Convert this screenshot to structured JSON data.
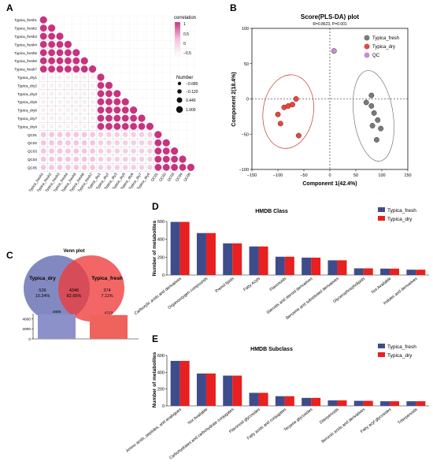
{
  "panels": {
    "A": {
      "label": "A"
    },
    "B": {
      "label": "B"
    },
    "C": {
      "label": "C"
    },
    "D": {
      "label": "D"
    },
    "E": {
      "label": "E"
    }
  },
  "colors": {
    "fresh": "#3f4c8c",
    "dry": "#e8201f",
    "qc": "#c68fd1",
    "grey": "#7a7a7a",
    "corr_high": "#c7337f",
    "corr_mid": "#f3c0dd"
  },
  "chart_data": [
    {
      "panel": "A",
      "type": "heatmap",
      "row_labels": [
        "Typica_fresh1",
        "Typica_fresh2",
        "Typica_fresh3",
        "Typica_fresh4",
        "Typica_fresh5",
        "Typica_fresh6",
        "Typica_fresh7",
        "Typica_dry1",
        "Typica_dry2",
        "Typica_dry3",
        "Typica_dry5",
        "Typica_dry6",
        "Typica_dry7",
        "Typica_dry4",
        "QC01",
        "QC02",
        "QC03",
        "QC04",
        "QC05"
      ],
      "col_labels": [
        "Typica_fresh1",
        "Typica_fresh2",
        "Typica_fresh3",
        "Typica_fresh4",
        "Typica_fresh5",
        "Typica_fresh6",
        "Typica_fresh7",
        "Typica_dry1",
        "Typica_dry2",
        "Typica_dry3",
        "Typica_dry5",
        "Typica_dry6",
        "Typica_dry7",
        "Typica_dry4",
        "QC01",
        "QC02",
        "QC03",
        "QC04",
        "QC05"
      ],
      "group_sizes": [
        7,
        7,
        5
      ],
      "block_correlation": {
        "same_group": 0.95,
        "fresh_vs_dry": 0.15,
        "qc_vs_fresh": 0.45,
        "qc_vs_dry": 0.4
      },
      "legend_correlation": {
        "title": "correlation",
        "ticks": [
          "1",
          "0.5",
          "0",
          "−0.5"
        ]
      },
      "legend_number": {
        "title": "Number",
        "values": [
          "−0.680",
          "−0.120",
          "0.440",
          "1.000"
        ]
      }
    },
    {
      "panel": "B",
      "type": "scatter",
      "title": "Score(PLS-DA) plot",
      "subtitle": "R=0.8623, P=0.001",
      "xlabel": "Component 1(42.4%)",
      "ylabel": "Component 2(18.4%)",
      "xlim": [
        -150,
        150
      ],
      "ylim": [
        -100,
        100
      ],
      "xticks": [
        "−150",
        "−100",
        "−50",
        "0",
        "50",
        "100",
        "150"
      ],
      "yticks": [
        "100",
        "50",
        "0",
        "−50",
        "−100"
      ],
      "series": [
        {
          "name": "Typica_fresh",
          "points": [
            [
              70,
              -5
            ],
            [
              80,
              -10
            ],
            [
              85,
              -20
            ],
            [
              82,
              -38
            ],
            [
              92,
              -30
            ],
            [
              98,
              -42
            ],
            [
              90,
              -58
            ],
            [
              80,
              5
            ]
          ]
        },
        {
          "name": "Typica_dry",
          "points": [
            [
              -100,
              -22
            ],
            [
              -95,
              -35
            ],
            [
              -88,
              -12
            ],
            [
              -80,
              -10
            ],
            [
              -72,
              -8
            ],
            [
              -65,
              0
            ],
            [
              -60,
              -52
            ]
          ]
        },
        {
          "name": "QC",
          "points": [
            [
              8,
              68
            ]
          ]
        }
      ]
    },
    {
      "panel": "C",
      "type": "bar",
      "title": "Venn plot",
      "venn": {
        "left_name": "Typica_dry",
        "left_only_count": "539",
        "left_only_pct": "10.24%",
        "shared_count": "4349",
        "shared_pct": "82.65%",
        "right_name": "Typica_fresh",
        "right_only_count": "374",
        "right_only_pct": "7.11%"
      },
      "yticks": [
        "4000",
        "2000",
        "0"
      ],
      "ylim": [
        0,
        5000
      ],
      "values": [
        4888,
        4723
      ],
      "value_labels": [
        "4888",
        "4723"
      ]
    },
    {
      "panel": "D",
      "type": "bar",
      "title": "HMDB Class",
      "ylabel": "Number of metabolites",
      "ylim": [
        0,
        600
      ],
      "yticks": [
        "0",
        "200",
        "400",
        "600"
      ],
      "categories": [
        "Carboxylic acids and derivatives",
        "Organooxygen compounds",
        "Prenol lipids",
        "Fatty Acyls",
        "Flavonoids",
        "Steroids and steroid derivatives",
        "Benzene and substituted derivatives",
        "Glycerophospholipids",
        "Not Available",
        "Indoles and derivatives"
      ],
      "series": [
        {
          "name": "Typica_fresh",
          "values": [
            595,
            470,
            355,
            320,
            205,
            195,
            165,
            75,
            72,
            60
          ]
        },
        {
          "name": "Typica_dry",
          "values": [
            595,
            470,
            355,
            320,
            205,
            195,
            165,
            75,
            72,
            60
          ]
        }
      ]
    },
    {
      "panel": "E",
      "type": "bar",
      "title": "HMDB Subclass",
      "ylabel": "Number of metabolites",
      "ylim": [
        0,
        600
      ],
      "yticks": [
        "0",
        "200",
        "400",
        "600"
      ],
      "categories": [
        "Amino acids, peptides, and analogues",
        "Not Available",
        "Carbohydrates and carbohydrate conjugates",
        "Flavonoid glycosides",
        "Fatty acids and conjugates",
        "Terpene glycosides",
        "Diterpenoids",
        "Benzoic acids and derivatives",
        "Fatty acyl glycosides",
        "Triterpenoids"
      ],
      "series": [
        {
          "name": "Typica_fresh",
          "values": [
            535,
            385,
            360,
            155,
            115,
            95,
            65,
            60,
            55,
            55
          ]
        },
        {
          "name": "Typica_dry",
          "values": [
            535,
            385,
            360,
            155,
            115,
            95,
            65,
            60,
            55,
            55
          ]
        }
      ]
    }
  ]
}
